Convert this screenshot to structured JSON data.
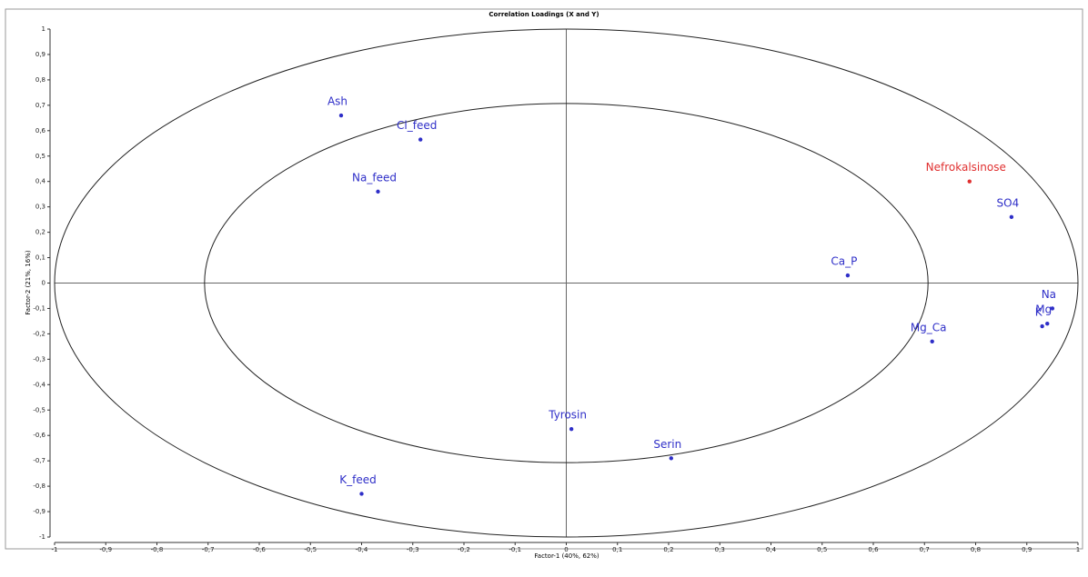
{
  "chart_data": {
    "type": "scatter",
    "title": "Correlation Loadings (X and Y)",
    "x_label": "Factor-1 (40%, 62%)",
    "y_label": "Factor-2 (21%, 16%)",
    "labels": [
      "Ash",
      "Cl_feed",
      "Na_feed",
      "Nefrokalsinose",
      "SO4",
      "Ca_P",
      "Na",
      "Mg",
      "K",
      "Mg_Ca",
      "Tyrosin",
      "Serin",
      "K_feed"
    ],
    "x": [
      -0.44,
      -0.285,
      -0.368,
      0.788,
      0.87,
      0.55,
      0.95,
      0.94,
      0.93,
      0.715,
      0.01,
      0.205,
      -0.4
    ],
    "y": [
      0.66,
      0.565,
      0.36,
      0.4,
      0.26,
      0.03,
      -0.1,
      -0.16,
      -0.17,
      -0.23,
      -0.575,
      -0.69,
      -0.83
    ],
    "colors": [
      "#2f2fc8",
      "#2f2fc8",
      "#2f2fc8",
      "#e03030",
      "#2f2fc8",
      "#2f2fc8",
      "#2f2fc8",
      "#2f2fc8",
      "#2f2fc8",
      "#2f2fc8",
      "#2f2fc8",
      "#2f2fc8",
      "#2f2fc8"
    ],
    "circle_radii": [
      0.707,
      1
    ],
    "xlim": [
      -1,
      1
    ],
    "ylim": [
      -1,
      1
    ],
    "xticks": [
      -1,
      {
        "value": -0.9,
        "label": "-0,9"
      },
      {
        "value": -0.8,
        "label": "-0,8"
      },
      {
        "value": -0.7,
        "label": "-0,7"
      },
      {
        "value": -0.6,
        "label": "-0,6"
      },
      {
        "value": -0.5,
        "label": "-0,5"
      },
      {
        "value": -0.4,
        "label": "-0,4"
      },
      {
        "value": -0.3,
        "label": "-0,3"
      },
      {
        "value": -0.2,
        "label": "-0,2"
      },
      {
        "value": -0.1,
        "label": "-0,1"
      },
      0,
      {
        "value": 0.1,
        "label": "0,1"
      },
      {
        "value": 0.2,
        "label": "0,2"
      },
      {
        "value": 0.3,
        "label": "0,3"
      },
      {
        "value": 0.4,
        "label": "0,4"
      },
      {
        "value": 0.5,
        "label": "0,5"
      },
      {
        "value": 0.6,
        "label": "0,6"
      },
      {
        "value": 0.7,
        "label": "0,7"
      },
      {
        "value": 0.8,
        "label": "0,8"
      },
      {
        "value": 0.9,
        "label": "0,9"
      },
      1
    ],
    "yticks": [
      -1,
      {
        "value": -0.9,
        "label": "-0,9"
      },
      {
        "value": -0.8,
        "label": "-0,8"
      },
      {
        "value": -0.7,
        "label": "-0,7"
      },
      {
        "value": -0.6,
        "label": "-0,6"
      },
      {
        "value": -0.5,
        "label": "-0,5"
      },
      {
        "value": -0.4,
        "label": "-0,4"
      },
      {
        "value": -0.3,
        "label": "-0,3"
      },
      {
        "value": -0.2,
        "label": "-0,2"
      },
      {
        "value": -0.1,
        "label": "-0,1"
      },
      0,
      {
        "value": 0.1,
        "label": "0,1"
      },
      {
        "value": 0.2,
        "label": "0,2"
      },
      {
        "value": 0.3,
        "label": "0,3"
      },
      {
        "value": 0.4,
        "label": "0,4"
      },
      {
        "value": 0.5,
        "label": "0,5"
      },
      {
        "value": 0.6,
        "label": "0,6"
      },
      {
        "value": 0.7,
        "label": "0,7"
      },
      {
        "value": 0.8,
        "label": "0,8"
      },
      {
        "value": 0.9,
        "label": "0,9"
      },
      1
    ]
  }
}
